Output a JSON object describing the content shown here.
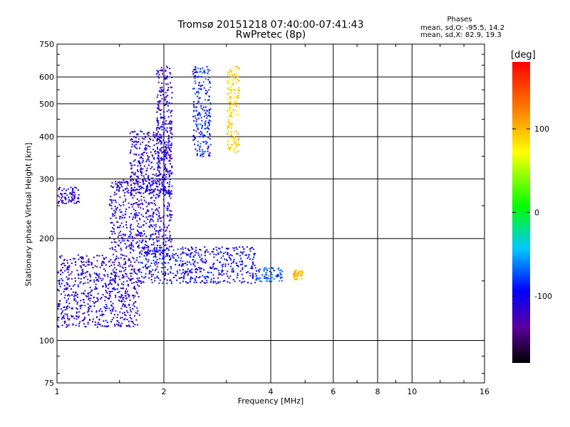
{
  "header": {
    "title_line1": "Tromsø 20151218 07:40:00-07:41:43",
    "title_line2": "RwPretec (8p)",
    "phases_title": "Phases",
    "phases_O": "mean, sd,O: -95.5, 14.2",
    "phases_X": "mean, sd,X:  82.9, 19.3"
  },
  "colorbar": {
    "unit": "[deg]",
    "ticks": [
      "100",
      "0",
      "-100"
    ],
    "range": [
      -180,
      180
    ]
  },
  "chart_data": {
    "type": "scatter",
    "xlabel": "Frequency [MHz]",
    "ylabel": "Stationary phase Virtual Height [km]",
    "xscale": "log",
    "yscale": "log",
    "xlim": [
      1,
      16
    ],
    "ylim": [
      75,
      750
    ],
    "xticks": [
      "1",
      "2",
      "4",
      "6",
      "8",
      "10",
      "16"
    ],
    "yticks": [
      "75",
      "100",
      "200",
      "300",
      "400",
      "500",
      "600",
      "750"
    ],
    "grid": true,
    "traces": [
      {
        "x_range": [
          1.0,
          1.7
        ],
        "y_range": [
          110,
          180
        ],
        "phase": -110
      },
      {
        "x_range": [
          1.4,
          2.1
        ],
        "y_range": [
          180,
          300
        ],
        "phase": -110
      },
      {
        "x_range": [
          1.0,
          1.15
        ],
        "y_range": [
          255,
          285
        ],
        "phase": -110
      },
      {
        "x_range": [
          1.6,
          2.1
        ],
        "y_range": [
          270,
          420
        ],
        "phase": -110
      },
      {
        "x_range": [
          1.9,
          2.1
        ],
        "y_range": [
          300,
          650
        ],
        "phase": -110
      },
      {
        "x_range": [
          2.4,
          2.7
        ],
        "y_range": [
          350,
          650
        ],
        "phase": -90
      },
      {
        "x_range": [
          3.0,
          3.25
        ],
        "y_range": [
          360,
          650
        ],
        "phase": 90
      },
      {
        "x_range": [
          1.7,
          3.6
        ],
        "y_range": [
          148,
          190
        ],
        "phase": -100
      },
      {
        "x_range": [
          3.6,
          4.3
        ],
        "y_range": [
          150,
          165
        ],
        "phase": -70
      },
      {
        "x_range": [
          4.6,
          4.9
        ],
        "y_range": [
          152,
          162
        ],
        "phase": 100
      }
    ]
  }
}
